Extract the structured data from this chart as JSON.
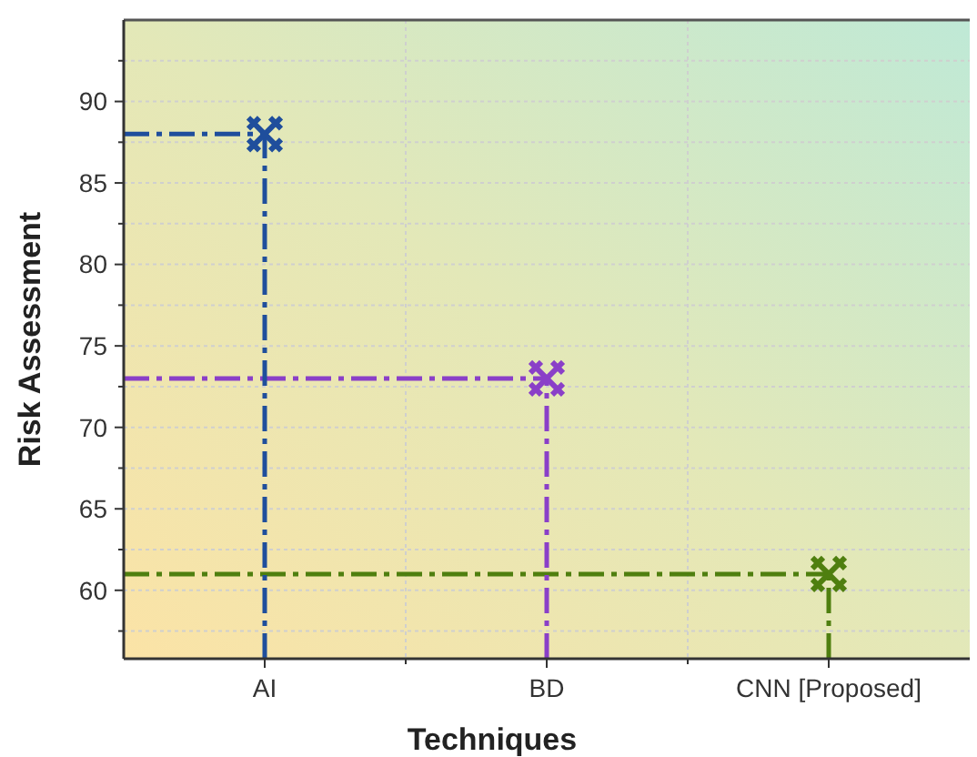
{
  "chart_data": {
    "type": "lollipop",
    "xlabel": "Techniques",
    "ylabel": "Risk Assessment",
    "categories": [
      "AI",
      "BD",
      "CNN [Proposed]"
    ],
    "values": [
      88,
      73,
      61
    ],
    "colors": [
      "#1f4e9c",
      "#8a3fc8",
      "#4f7f0f"
    ],
    "ylim": [
      55.8,
      95
    ],
    "yticks": [
      {
        "value": 57.5,
        "label": null
      },
      60,
      {
        "value": 62.5,
        "label": null
      },
      65,
      {
        "value": 67.5,
        "label": null
      },
      70,
      {
        "value": 72.5,
        "label": null
      },
      75,
      {
        "value": 77.5,
        "label": null
      },
      80,
      {
        "value": 82.5,
        "label": null
      },
      85,
      {
        "value": 87.5,
        "label": null
      },
      90,
      {
        "value": 92.5,
        "label": null
      }
    ],
    "ref_lines": [
      {
        "axis": "y",
        "value": 88,
        "color": "#1f4e9c",
        "line_style": "dashed"
      },
      {
        "axis": "y",
        "value": 73,
        "color": "#8a3fc8",
        "line_style": "dashed"
      },
      {
        "axis": "y",
        "value": 61,
        "color": "#4f7f0f",
        "line_style": "dashed"
      }
    ],
    "grid": true,
    "marker": "cross",
    "line_style": "dashed"
  }
}
